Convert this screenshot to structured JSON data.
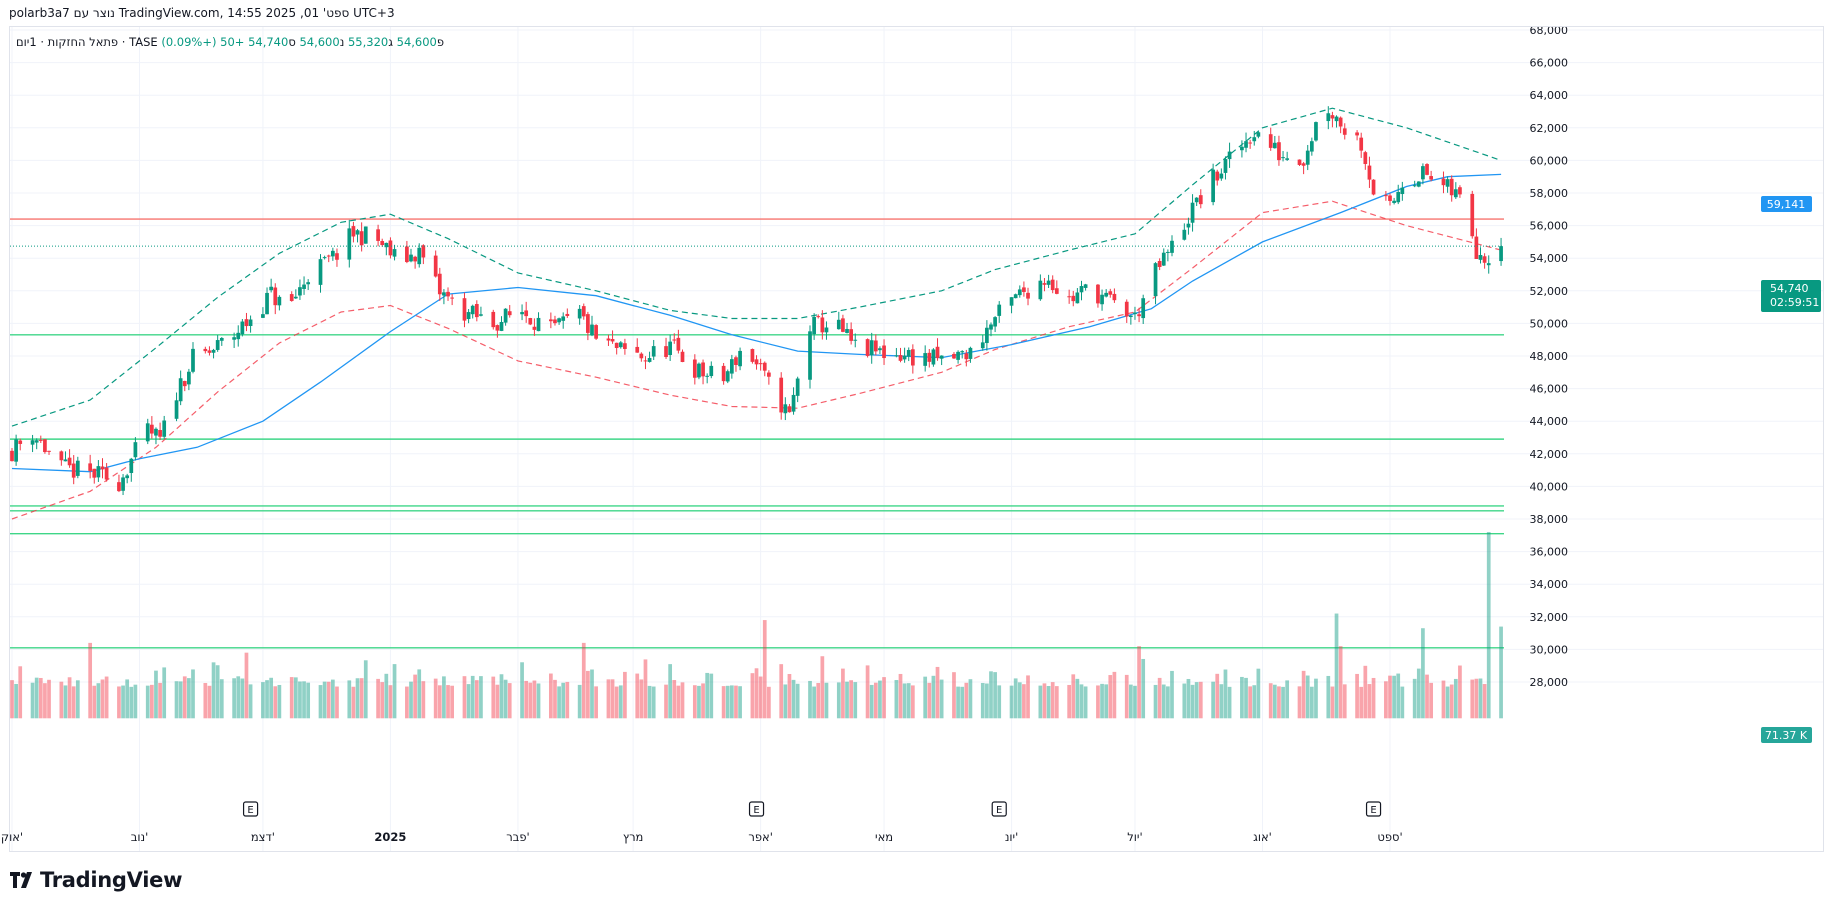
{
  "header": {
    "info": "polarb3a7 נוצר עם TradingView.com, ספט' 01, 2025 14:55 UTC+3"
  },
  "legend": {
    "symbol": "פתאל החזקות · 1יום · TASE",
    "open_label": "פ",
    "open": "54,600",
    "high_label": "ג",
    "high": "55,320",
    "low_label": "נ",
    "low": "54,600",
    "close_label": "ס",
    "close": "54,740",
    "change": "+50 (+0.09%)"
  },
  "price_badges": {
    "ma": "59,141",
    "last": "54,740",
    "countdown": "02:59:51",
    "volume": "71.37 K"
  },
  "branding": {
    "logo_text": "TradingView"
  },
  "colors": {
    "up": "#089981",
    "down": "#f23645",
    "ma": "#2196f3",
    "upper_band": "#089981",
    "lower_band": "#f23645",
    "hline_green": "#21c76f",
    "hline_red": "#f23645"
  },
  "chart_data": {
    "type": "candlestick",
    "y_ticks": [
      "68,000",
      "66,000",
      "64,000",
      "62,000",
      "60,000",
      "58,000",
      "56,000",
      "54,000",
      "52,000",
      "50,000",
      "48,000",
      "46,000",
      "44,000",
      "42,000",
      "40,000",
      "38,000",
      "36,000",
      "34,000",
      "32,000",
      "30,000",
      "28,000"
    ],
    "ylim": [
      27000,
      68000
    ],
    "x_labels": [
      {
        "t": "אוק'",
        "d": "2024-10-01"
      },
      {
        "t": "נוב'",
        "d": "2024-11-01"
      },
      {
        "t": "דצמ'",
        "d": "2024-12-01"
      },
      {
        "t": "2025",
        "d": "2025-01-01",
        "bold": true
      },
      {
        "t": "פבר'",
        "d": "2025-02-01"
      },
      {
        "t": "מרץ",
        "d": "2025-03-01"
      },
      {
        "t": "אפר'",
        "d": "2025-04-01"
      },
      {
        "t": "מאי",
        "d": "2025-05-01"
      },
      {
        "t": "יונ'",
        "d": "2025-06-01"
      },
      {
        "t": "יול'",
        "d": "2025-07-01"
      },
      {
        "t": "אוג'",
        "d": "2025-08-01"
      },
      {
        "t": "ספט'",
        "d": "2025-09-01"
      }
    ],
    "earnings_markers": [
      "2024-11-28",
      "2025-03-31",
      "2025-05-29",
      "2025-08-28"
    ],
    "earnings_label": "E",
    "date_range": [
      "2024-10-01",
      "2025-09-01"
    ],
    "horizontal_lines": [
      {
        "price": 56400,
        "color": "red"
      },
      {
        "price": 49300,
        "color": "green"
      },
      {
        "price": 42900,
        "color": "green"
      },
      {
        "price": 38800,
        "color": "green"
      },
      {
        "price": 38500,
        "color": "green"
      },
      {
        "price": 37100,
        "color": "green"
      },
      {
        "price": 30100,
        "color": "green"
      }
    ],
    "last_price": 54740,
    "candle_anchors": [
      [
        "2024-10-01",
        42200
      ],
      [
        "2024-10-06",
        43300
      ],
      [
        "2024-10-13",
        41100
      ],
      [
        "2024-10-20",
        40800
      ],
      [
        "2024-10-27",
        40300
      ],
      [
        "2024-11-03",
        43400
      ],
      [
        "2024-11-06",
        42800
      ],
      [
        "2024-11-10",
        45800
      ],
      [
        "2024-11-14",
        47800
      ],
      [
        "2024-11-18",
        48200
      ],
      [
        "2024-11-24",
        49300
      ],
      [
        "2024-11-29",
        50600
      ],
      [
        "2024-12-03",
        51800
      ],
      [
        "2024-12-07",
        50800
      ],
      [
        "2024-12-12",
        53000
      ],
      [
        "2024-12-18",
        54000
      ],
      [
        "2024-12-23",
        55500
      ],
      [
        "2024-12-28",
        55300
      ],
      [
        "2025-01-03",
        53800
      ],
      [
        "2025-01-08",
        54400
      ],
      [
        "2025-01-13",
        51900
      ],
      [
        "2025-01-19",
        50700
      ],
      [
        "2025-01-26",
        50000
      ],
      [
        "2025-02-02",
        50800
      ],
      [
        "2025-02-09",
        49500
      ],
      [
        "2025-02-16",
        50500
      ],
      [
        "2025-02-20",
        49000
      ],
      [
        "2025-02-26",
        48300
      ],
      [
        "2025-03-04",
        47900
      ],
      [
        "2025-03-10",
        48600
      ],
      [
        "2025-03-17",
        47000
      ],
      [
        "2025-03-23",
        46600
      ],
      [
        "2025-03-28",
        48700
      ],
      [
        "2025-04-03",
        46200
      ],
      [
        "2025-04-08",
        44300
      ],
      [
        "2025-04-13",
        49800
      ],
      [
        "2025-04-19",
        50000
      ],
      [
        "2025-04-24",
        48500
      ],
      [
        "2025-05-01",
        48200
      ],
      [
        "2025-05-08",
        48000
      ],
      [
        "2025-05-15",
        47700
      ],
      [
        "2025-05-22",
        48200
      ],
      [
        "2025-05-28",
        50300
      ],
      [
        "2025-06-03",
        51800
      ],
      [
        "2025-06-10",
        52900
      ],
      [
        "2025-06-14",
        51300
      ],
      [
        "2025-06-20",
        52200
      ],
      [
        "2025-06-25",
        51300
      ],
      [
        "2025-07-01",
        50300
      ],
      [
        "2025-07-05",
        52700
      ],
      [
        "2025-07-10",
        54700
      ],
      [
        "2025-07-15",
        57000
      ],
      [
        "2025-07-20",
        58800
      ],
      [
        "2025-07-25",
        60300
      ],
      [
        "2025-07-30",
        61800
      ],
      [
        "2025-08-05",
        60400
      ],
      [
        "2025-08-11",
        60200
      ],
      [
        "2025-08-16",
        63600
      ],
      [
        "2025-08-21",
        62000
      ],
      [
        "2025-08-25",
        61100
      ],
      [
        "2025-08-28",
        58200
      ],
      [
        "2025-09-01",
        57000
      ],
      [
        "2025-09-04",
        58800
      ],
      [
        "2025-09-09",
        59200
      ],
      [
        "2025-09-15",
        58200
      ],
      [
        "2025-09-19",
        57600
      ],
      [
        "2025-09-22",
        54600
      ],
      [
        "2025-09-25",
        54100
      ],
      [
        "2025-09-28",
        54740
      ]
    ],
    "ma_line": [
      [
        "2024-10-01",
        41100
      ],
      [
        "2024-10-20",
        40900
      ],
      [
        "2024-11-01",
        41700
      ],
      [
        "2024-11-15",
        42400
      ],
      [
        "2024-12-01",
        44000
      ],
      [
        "2024-12-15",
        46400
      ],
      [
        "2025-01-01",
        49500
      ],
      [
        "2025-01-15",
        51800
      ],
      [
        "2025-02-01",
        52200
      ],
      [
        "2025-02-20",
        51700
      ],
      [
        "2025-03-10",
        50500
      ],
      [
        "2025-03-25",
        49300
      ],
      [
        "2025-04-10",
        48300
      ],
      [
        "2025-04-25",
        48100
      ],
      [
        "2025-05-15",
        47900
      ],
      [
        "2025-06-01",
        48700
      ],
      [
        "2025-06-20",
        49800
      ],
      [
        "2025-07-05",
        50900
      ],
      [
        "2025-07-15",
        52600
      ],
      [
        "2025-08-01",
        55000
      ],
      [
        "2025-08-20",
        56800
      ],
      [
        "2025-09-05",
        58400
      ],
      [
        "2025-09-15",
        59000
      ],
      [
        "2025-09-28",
        59141
      ]
    ],
    "upper_band": [
      [
        "2024-10-01",
        43700
      ],
      [
        "2024-10-20",
        45300
      ],
      [
        "2024-11-05",
        48500
      ],
      [
        "2024-11-20",
        51600
      ],
      [
        "2024-12-05",
        54300
      ],
      [
        "2024-12-20",
        56200
      ],
      [
        "2025-01-01",
        56700
      ],
      [
        "2025-01-15",
        55200
      ],
      [
        "2025-02-01",
        53100
      ],
      [
        "2025-02-20",
        52000
      ],
      [
        "2025-03-10",
        50800
      ],
      [
        "2025-03-25",
        50300
      ],
      [
        "2025-04-10",
        50300
      ],
      [
        "2025-04-25",
        51000
      ],
      [
        "2025-05-15",
        52000
      ],
      [
        "2025-05-28",
        53300
      ],
      [
        "2025-06-15",
        54500
      ],
      [
        "2025-07-01",
        55500
      ],
      [
        "2025-07-15",
        58500
      ],
      [
        "2025-08-01",
        62000
      ],
      [
        "2025-08-18",
        63200
      ],
      [
        "2025-09-05",
        62000
      ],
      [
        "2025-09-28",
        60000
      ]
    ],
    "lower_band": [
      [
        "2024-10-01",
        38000
      ],
      [
        "2024-10-20",
        39700
      ],
      [
        "2024-11-05",
        42400
      ],
      [
        "2024-11-20",
        45800
      ],
      [
        "2024-12-05",
        48800
      ],
      [
        "2024-12-20",
        50700
      ],
      [
        "2025-01-01",
        51100
      ],
      [
        "2025-01-15",
        49700
      ],
      [
        "2025-02-01",
        47700
      ],
      [
        "2025-02-20",
        46700
      ],
      [
        "2025-03-10",
        45600
      ],
      [
        "2025-03-25",
        44900
      ],
      [
        "2025-04-10",
        44800
      ],
      [
        "2025-04-25",
        45700
      ],
      [
        "2025-05-15",
        47000
      ],
      [
        "2025-05-28",
        48400
      ],
      [
        "2025-06-15",
        49800
      ],
      [
        "2025-07-01",
        50700
      ],
      [
        "2025-07-15",
        53400
      ],
      [
        "2025-08-01",
        56800
      ],
      [
        "2025-08-18",
        57500
      ],
      [
        "2025-09-05",
        56000
      ],
      [
        "2025-09-28",
        54500
      ]
    ],
    "volume_spikes": [
      [
        "2024-10-20",
        30400
      ],
      [
        "2024-11-27",
        29800
      ],
      [
        "2025-01-04",
        30200
      ],
      [
        "2025-02-17",
        30400
      ],
      [
        "2025-03-29",
        29400
      ],
      [
        "2025-04-02",
        31800
      ],
      [
        "2025-06-06",
        29600
      ],
      [
        "2025-07-02",
        30200
      ],
      [
        "2025-07-19",
        29800
      ],
      [
        "2025-08-19",
        32200
      ],
      [
        "2025-08-20",
        30200
      ],
      [
        "2025-09-09",
        31300
      ],
      [
        "2025-09-25",
        37200
      ],
      [
        "2025-09-26",
        31800
      ],
      [
        "2025-09-28",
        31400
      ]
    ],
    "volume_base": 27000
  }
}
